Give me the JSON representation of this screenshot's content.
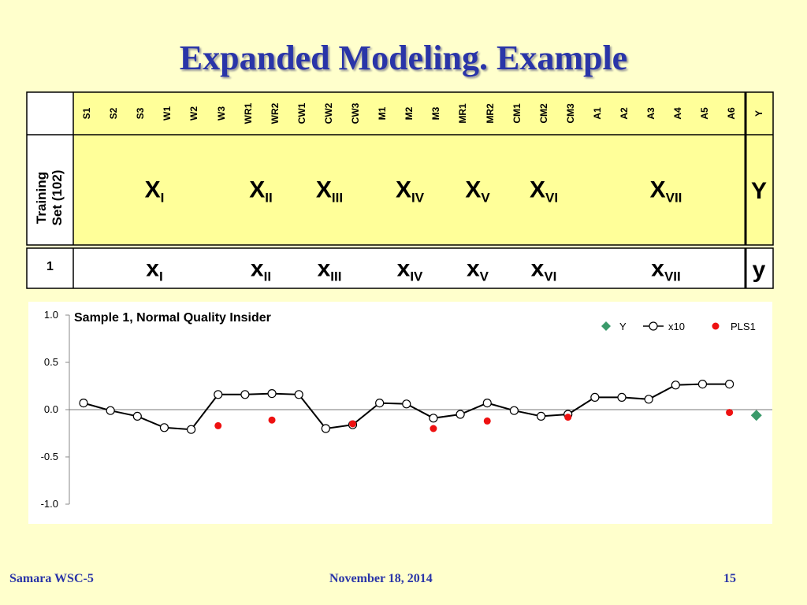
{
  "title": "Expanded Modeling. Example",
  "table": {
    "column_headers": [
      "S1",
      "S2",
      "S3",
      "W1",
      "W2",
      "W3",
      "WR1",
      "WR2",
      "CW1",
      "CW2",
      "CW3",
      "M1",
      "M2",
      "M3",
      "MR1",
      "MR2",
      "CM1",
      "CM2",
      "CM3",
      "A1",
      "A2",
      "A3",
      "A4",
      "A5",
      "A6"
    ],
    "y_header": "Y",
    "training_label": [
      "Training",
      "Set (102)"
    ],
    "sample_label": "1",
    "training_blocks": [
      {
        "base": "X",
        "sub": "I"
      },
      {
        "base": "X",
        "sub": "II"
      },
      {
        "base": "X",
        "sub": "III"
      },
      {
        "base": "X",
        "sub": "IV"
      },
      {
        "base": "X",
        "sub": "V"
      },
      {
        "base": "X",
        "sub": "VI"
      },
      {
        "base": "X",
        "sub": "VII"
      }
    ],
    "training_y": "Y",
    "sample_blocks": [
      {
        "base": "x",
        "sub": "I"
      },
      {
        "base": "x",
        "sub": "II"
      },
      {
        "base": "x",
        "sub": "III"
      },
      {
        "base": "x",
        "sub": "IV"
      },
      {
        "base": "x",
        "sub": "V"
      },
      {
        "base": "x",
        "sub": "VI"
      },
      {
        "base": "x",
        "sub": "VII"
      }
    ],
    "sample_y": "y"
  },
  "chart_data": {
    "type": "line",
    "title": "Sample 1, Normal Quality Insider",
    "xlabel": "",
    "ylabel": "",
    "ylim": [
      -1.0,
      1.0
    ],
    "yticks": [
      "1.0",
      "0.5",
      "0.0",
      "-0.5",
      "-1.0"
    ],
    "ytick_values": [
      1.0,
      0.5,
      0.0,
      -0.5,
      -1.0
    ],
    "x_positions": 26,
    "legend_position": "top-right",
    "series": [
      {
        "name": "Y",
        "color": "#3a9a6a",
        "marker": "diamond",
        "points": [
          [
            26,
            -0.06
          ]
        ]
      },
      {
        "name": "x10",
        "color": "#000000",
        "marker": "open-circle",
        "line": true,
        "points": [
          [
            1,
            0.07
          ],
          [
            2,
            -0.01
          ],
          [
            3,
            -0.07
          ],
          [
            4,
            -0.19
          ],
          [
            5,
            -0.21
          ],
          [
            6,
            0.16
          ],
          [
            7,
            0.16
          ],
          [
            8,
            0.17
          ],
          [
            9,
            0.16
          ],
          [
            10,
            -0.2
          ],
          [
            11,
            -0.16
          ],
          [
            12,
            0.07
          ],
          [
            13,
            0.06
          ],
          [
            14,
            -0.09
          ],
          [
            15,
            -0.05
          ],
          [
            16,
            0.07
          ],
          [
            17,
            -0.01
          ],
          [
            18,
            -0.07
          ],
          [
            19,
            -0.05
          ],
          [
            20,
            0.13
          ],
          [
            21,
            0.13
          ],
          [
            22,
            0.11
          ],
          [
            23,
            0.26
          ],
          [
            24,
            0.27
          ],
          [
            25,
            0.27
          ]
        ]
      },
      {
        "name": "PLS1",
        "color": "#ee1111",
        "marker": "dot",
        "points": [
          [
            6,
            -0.17
          ],
          [
            8,
            -0.11
          ],
          [
            11,
            -0.15
          ],
          [
            14,
            -0.2
          ],
          [
            16,
            -0.12
          ],
          [
            19,
            -0.08
          ],
          [
            25,
            -0.03
          ]
        ]
      }
    ]
  },
  "footer": {
    "left": "Samara WSC-5",
    "center": "November 18, 2014",
    "right": "15"
  }
}
